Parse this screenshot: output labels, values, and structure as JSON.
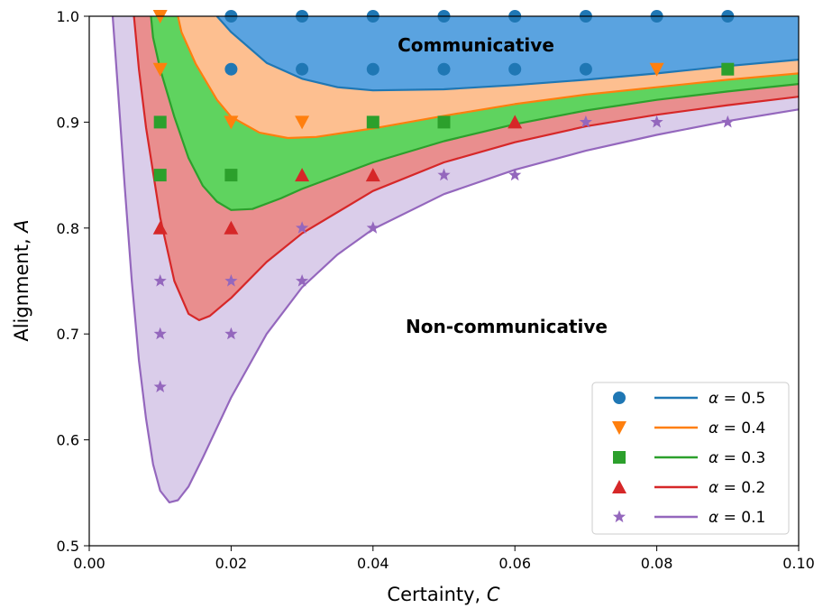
{
  "chart_data": {
    "type": "line",
    "xlabel_prefix": "Certainty, ",
    "xlabel_symbol": "C",
    "ylabel_prefix": "Alignment, ",
    "ylabel_symbol": "A",
    "xlim": [
      0.0,
      0.1
    ],
    "ylim": [
      0.5,
      1.0
    ],
    "x_ticks": [
      "0.00",
      "0.02",
      "0.04",
      "0.06",
      "0.08",
      "0.10"
    ],
    "y_ticks": [
      "0.5",
      "0.6",
      "0.7",
      "0.8",
      "0.9",
      "1.0"
    ],
    "region_labels": {
      "upper": "Communicative",
      "lower": "Non-communicative"
    },
    "legend_position": "lower-right",
    "series": [
      {
        "name": "α = 0.5",
        "alpha": "0.5",
        "color": "#1f77b4",
        "fill": "#5aa3e0",
        "marker": "circle",
        "curve": [
          [
            0.018,
            1.0
          ],
          [
            0.02,
            0.985
          ],
          [
            0.025,
            0.956
          ],
          [
            0.03,
            0.941
          ],
          [
            0.035,
            0.933
          ],
          [
            0.04,
            0.93
          ],
          [
            0.05,
            0.931
          ],
          [
            0.06,
            0.935
          ],
          [
            0.07,
            0.94
          ],
          [
            0.08,
            0.946
          ],
          [
            0.09,
            0.953
          ],
          [
            0.1,
            0.959
          ]
        ],
        "points": [
          [
            0.02,
            1.0
          ],
          [
            0.03,
            1.0
          ],
          [
            0.04,
            1.0
          ],
          [
            0.05,
            1.0
          ],
          [
            0.06,
            1.0
          ],
          [
            0.07,
            1.0
          ],
          [
            0.08,
            1.0
          ],
          [
            0.09,
            1.0
          ],
          [
            0.02,
            0.95
          ],
          [
            0.03,
            0.95
          ],
          [
            0.04,
            0.95
          ],
          [
            0.05,
            0.95
          ],
          [
            0.06,
            0.95
          ],
          [
            0.07,
            0.95
          ]
        ]
      },
      {
        "name": "α = 0.4",
        "alpha": "0.4",
        "color": "#ff7f0e",
        "fill": "#fdbf90",
        "marker": "triangle-down",
        "curve": [
          [
            0.0125,
            1.0
          ],
          [
            0.013,
            0.985
          ],
          [
            0.015,
            0.955
          ],
          [
            0.018,
            0.921
          ],
          [
            0.02,
            0.905
          ],
          [
            0.024,
            0.89
          ],
          [
            0.028,
            0.885
          ],
          [
            0.032,
            0.886
          ],
          [
            0.04,
            0.894
          ],
          [
            0.05,
            0.906
          ],
          [
            0.06,
            0.917
          ],
          [
            0.07,
            0.926
          ],
          [
            0.08,
            0.933
          ],
          [
            0.09,
            0.94
          ],
          [
            0.1,
            0.946
          ]
        ],
        "points": [
          [
            0.01,
            1.0
          ],
          [
            0.01,
            0.95
          ],
          [
            0.02,
            0.9
          ],
          [
            0.03,
            0.9
          ],
          [
            0.08,
            0.95
          ]
        ]
      },
      {
        "name": "α = 0.3",
        "alpha": "0.3",
        "color": "#2ca02c",
        "fill": "#5fd35f",
        "marker": "square",
        "curve": [
          [
            0.0087,
            1.0
          ],
          [
            0.009,
            0.98
          ],
          [
            0.01,
            0.95
          ],
          [
            0.012,
            0.905
          ],
          [
            0.014,
            0.866
          ],
          [
            0.016,
            0.84
          ],
          [
            0.018,
            0.825
          ],
          [
            0.02,
            0.817
          ],
          [
            0.023,
            0.818
          ],
          [
            0.027,
            0.828
          ],
          [
            0.03,
            0.837
          ],
          [
            0.04,
            0.862
          ],
          [
            0.05,
            0.882
          ],
          [
            0.06,
            0.898
          ],
          [
            0.07,
            0.911
          ],
          [
            0.08,
            0.921
          ],
          [
            0.09,
            0.929
          ],
          [
            0.1,
            0.936
          ]
        ],
        "points": [
          [
            0.01,
            0.9
          ],
          [
            0.01,
            0.85
          ],
          [
            0.02,
            0.85
          ],
          [
            0.04,
            0.9
          ],
          [
            0.05,
            0.9
          ],
          [
            0.09,
            0.95
          ]
        ]
      },
      {
        "name": "α = 0.2",
        "alpha": "0.2",
        "color": "#d62728",
        "fill": "#e98e8e",
        "marker": "triangle-up",
        "curve": [
          [
            0.0063,
            1.0
          ],
          [
            0.007,
            0.95
          ],
          [
            0.008,
            0.895
          ],
          [
            0.01,
            0.81
          ],
          [
            0.012,
            0.75
          ],
          [
            0.014,
            0.719
          ],
          [
            0.0155,
            0.713
          ],
          [
            0.017,
            0.717
          ],
          [
            0.02,
            0.734
          ],
          [
            0.025,
            0.768
          ],
          [
            0.03,
            0.795
          ],
          [
            0.04,
            0.835
          ],
          [
            0.05,
            0.862
          ],
          [
            0.06,
            0.881
          ],
          [
            0.07,
            0.896
          ],
          [
            0.08,
            0.907
          ],
          [
            0.09,
            0.916
          ],
          [
            0.1,
            0.924
          ]
        ],
        "points": [
          [
            0.01,
            0.8
          ],
          [
            0.02,
            0.8
          ],
          [
            0.03,
            0.85
          ],
          [
            0.04,
            0.85
          ],
          [
            0.06,
            0.9
          ]
        ]
      },
      {
        "name": "α = 0.1",
        "alpha": "0.1",
        "color": "#9467bd",
        "fill": "#dacdea",
        "marker": "star",
        "curve": [
          [
            0.0033,
            1.0
          ],
          [
            0.004,
            0.935
          ],
          [
            0.005,
            0.84
          ],
          [
            0.006,
            0.75
          ],
          [
            0.007,
            0.675
          ],
          [
            0.008,
            0.62
          ],
          [
            0.009,
            0.577
          ],
          [
            0.01,
            0.552
          ],
          [
            0.0113,
            0.541
          ],
          [
            0.0125,
            0.543
          ],
          [
            0.014,
            0.556
          ],
          [
            0.016,
            0.583
          ],
          [
            0.02,
            0.64
          ],
          [
            0.025,
            0.7
          ],
          [
            0.03,
            0.744
          ],
          [
            0.035,
            0.775
          ],
          [
            0.04,
            0.799
          ],
          [
            0.05,
            0.832
          ],
          [
            0.06,
            0.855
          ],
          [
            0.07,
            0.873
          ],
          [
            0.08,
            0.888
          ],
          [
            0.09,
            0.901
          ],
          [
            0.1,
            0.912
          ]
        ],
        "points": [
          [
            0.01,
            0.75
          ],
          [
            0.01,
            0.7
          ],
          [
            0.01,
            0.65
          ],
          [
            0.02,
            0.75
          ],
          [
            0.02,
            0.7
          ],
          [
            0.03,
            0.8
          ],
          [
            0.03,
            0.75
          ],
          [
            0.04,
            0.8
          ],
          [
            0.05,
            0.85
          ],
          [
            0.06,
            0.85
          ],
          [
            0.07,
            0.9
          ],
          [
            0.08,
            0.9
          ],
          [
            0.09,
            0.9
          ]
        ]
      }
    ]
  }
}
